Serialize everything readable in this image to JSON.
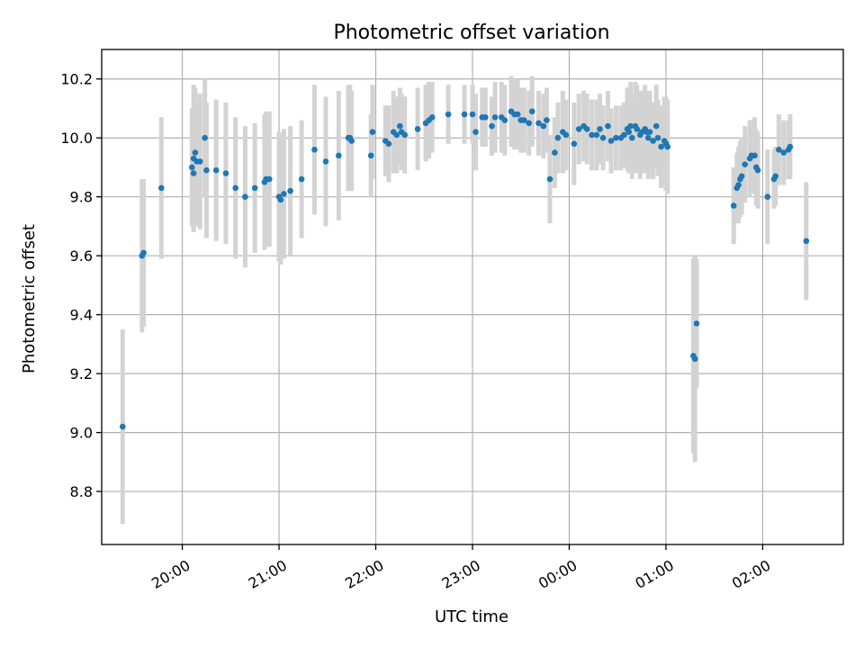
{
  "chart_data": {
    "type": "scatter",
    "title": "Photometric offset variation",
    "xlabel": "UTC time",
    "ylabel": "Photometric offset",
    "x_ticks": [
      "20:00",
      "21:00",
      "22:00",
      "23:00",
      "00:00",
      "01:00",
      "02:00"
    ],
    "x_tick_hours": [
      20,
      21,
      22,
      23,
      24,
      25,
      26
    ],
    "y_ticks": [
      "8.8",
      "9.0",
      "9.2",
      "9.4",
      "9.6",
      "9.8",
      "10.0",
      "10.2"
    ],
    "y_tick_values": [
      8.8,
      9.0,
      9.2,
      9.4,
      9.6,
      9.8,
      10.0,
      10.2
    ],
    "xlim": [
      "19:10",
      "02:50"
    ],
    "ylim": [
      8.62,
      10.3
    ],
    "grid": true,
    "point_color": "#1f77b4",
    "errorbar_color": "#d3d3d3",
    "series": [
      {
        "x": [
          "19:23",
          "19:35",
          "19:36",
          "19:47",
          "20:06",
          "20:07",
          "20:07",
          "20:08",
          "20:09",
          "20:11",
          "20:14",
          "20:15",
          "20:21",
          "20:27",
          "20:33",
          "20:39",
          "20:45",
          "20:51",
          "20:52",
          "20:54",
          "21:00",
          "21:01",
          "21:03",
          "21:07",
          "21:14",
          "21:22",
          "21:29",
          "21:37",
          "21:43",
          "21:44",
          "21:45",
          "21:57",
          "21:58",
          "22:06",
          "22:08",
          "22:11",
          "22:13",
          "22:15",
          "22:16",
          "22:18",
          "22:26",
          "22:31",
          "22:33",
          "22:35",
          "22:45",
          "22:55",
          "23:00",
          "23:02",
          "23:06",
          "23:08",
          "23:12",
          "23:14",
          "23:18",
          "23:20",
          "23:24",
          "23:26",
          "23:28",
          "23:30",
          "23:32",
          "23:35",
          "23:37",
          "23:41",
          "23:44",
          "23:46",
          "23:48",
          "23:51",
          "23:53",
          "23:56",
          "23:58",
          "00:03",
          "00:06",
          "00:09",
          "00:11",
          "00:14",
          "00:17",
          "00:19",
          "00:21",
          "00:24",
          "00:26",
          "00:29",
          "00:32",
          "00:34",
          "00:36",
          "00:37",
          "00:38",
          "00:39",
          "00:41",
          "00:42",
          "00:44",
          "00:45",
          "00:47",
          "00:48",
          "00:49",
          "00:50",
          "00:52",
          "00:54",
          "00:55",
          "00:57",
          "00:59",
          "01:00",
          "01:01",
          "01:17",
          "01:18",
          "01:19",
          "01:42",
          "01:44",
          "01:45",
          "01:46",
          "01:47",
          "01:49",
          "01:52",
          "01:53",
          "01:55",
          "01:56",
          "01:57",
          "02:03",
          "02:07",
          "02:08",
          "02:10",
          "02:13",
          "02:16",
          "02:17",
          "02:27"
        ],
        "y": [
          9.02,
          9.6,
          9.61,
          9.83,
          9.9,
          9.88,
          9.93,
          9.95,
          9.92,
          9.92,
          10.0,
          9.89,
          9.89,
          9.88,
          9.83,
          9.8,
          9.83,
          9.85,
          9.86,
          9.86,
          9.8,
          9.79,
          9.81,
          9.82,
          9.86,
          9.96,
          9.92,
          9.94,
          10.0,
          10.0,
          9.99,
          9.94,
          10.02,
          9.99,
          9.98,
          10.02,
          10.01,
          10.04,
          10.02,
          10.01,
          10.03,
          10.05,
          10.06,
          10.07,
          10.08,
          10.08,
          10.08,
          10.02,
          10.07,
          10.07,
          10.04,
          10.07,
          10.07,
          10.06,
          10.09,
          10.08,
          10.08,
          10.06,
          10.06,
          10.05,
          10.09,
          10.05,
          10.04,
          10.06,
          9.86,
          9.95,
          10.0,
          10.02,
          10.01,
          9.98,
          10.03,
          10.04,
          10.03,
          10.01,
          10.01,
          10.03,
          10.0,
          10.04,
          9.99,
          10.0,
          10.0,
          10.01,
          10.03,
          10.02,
          10.04,
          10.0,
          10.04,
          10.03,
          10.01,
          10.02,
          10.03,
          10.02,
          10.0,
          10.02,
          9.99,
          10.04,
          10.0,
          9.97,
          9.99,
          9.98,
          9.97,
          9.26,
          9.25,
          9.37,
          9.77,
          9.83,
          9.84,
          9.86,
          9.87,
          9.91,
          9.93,
          9.94,
          9.94,
          9.9,
          9.89,
          9.8,
          9.86,
          9.87,
          9.96,
          9.95,
          9.96,
          9.97,
          9.65
        ],
        "err": [
          0.33,
          0.26,
          0.25,
          0.24,
          0.2,
          0.2,
          0.25,
          0.22,
          0.22,
          0.23,
          0.2,
          0.23,
          0.24,
          0.24,
          0.24,
          0.24,
          0.22,
          0.23,
          0.23,
          0.23,
          0.22,
          0.22,
          0.22,
          0.22,
          0.2,
          0.22,
          0.22,
          0.22,
          0.18,
          0.18,
          0.17,
          0.14,
          0.16,
          0.12,
          0.13,
          0.14,
          0.13,
          0.13,
          0.13,
          0.13,
          0.14,
          0.13,
          0.13,
          0.12,
          0.1,
          0.1,
          0.1,
          0.13,
          0.1,
          0.1,
          0.1,
          0.12,
          0.12,
          0.12,
          0.12,
          0.12,
          0.12,
          0.11,
          0.11,
          0.11,
          0.12,
          0.11,
          0.11,
          0.11,
          0.15,
          0.12,
          0.12,
          0.14,
          0.12,
          0.14,
          0.12,
          0.12,
          0.12,
          0.12,
          0.12,
          0.12,
          0.11,
          0.12,
          0.11,
          0.11,
          0.11,
          0.11,
          0.14,
          0.14,
          0.15,
          0.14,
          0.15,
          0.15,
          0.15,
          0.14,
          0.15,
          0.14,
          0.14,
          0.14,
          0.13,
          0.14,
          0.13,
          0.14,
          0.15,
          0.16,
          0.16,
          0.33,
          0.35,
          0.22,
          0.13,
          0.12,
          0.13,
          0.13,
          0.13,
          0.13,
          0.13,
          0.12,
          0.13,
          0.13,
          0.13,
          0.16,
          0.1,
          0.1,
          0.12,
          0.11,
          0.1,
          0.11,
          0.2
        ]
      }
    ]
  }
}
